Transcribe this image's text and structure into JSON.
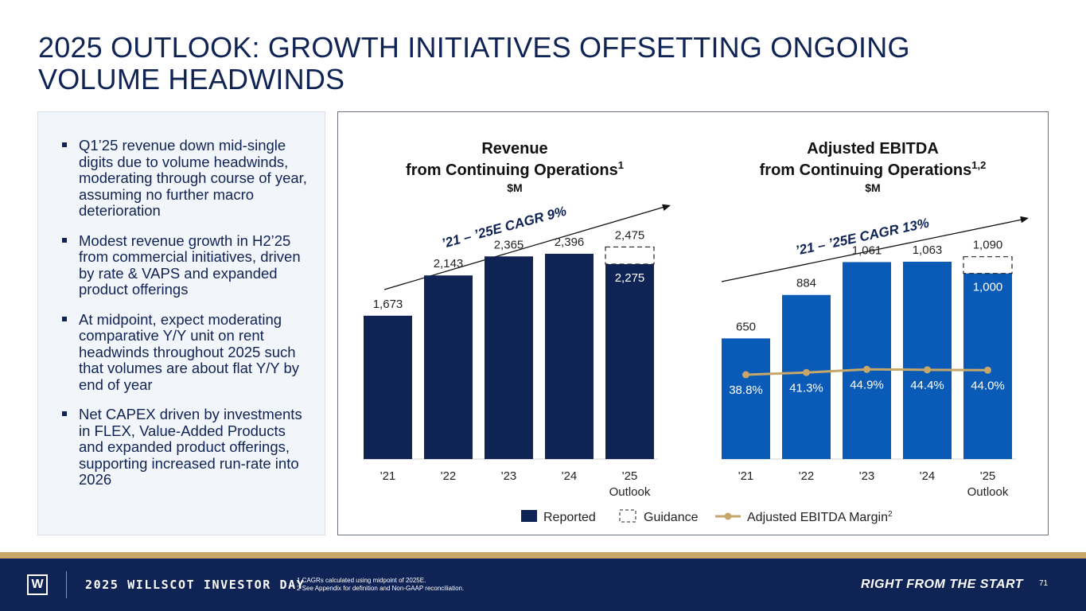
{
  "title": "2025 OUTLOOK: GROWTH INITIATIVES OFFSETTING ONGOING VOLUME HEADWINDS",
  "bullets": [
    "Q1’25 revenue down mid-single digits due to volume headwinds, moderating through course of year, assuming no further macro deterioration",
    "Modest revenue growth in H2’25 from commercial initiatives, driven by rate & VAPS and expanded product offerings",
    "At midpoint, expect moderating comparative Y/Y unit on rent headwinds throughout 2025 such that volumes are about flat Y/Y by end of year",
    "Net CAPEX driven by investments in FLEX, Value-Added Products and expanded product offerings, supporting increased run-rate into 2026"
  ],
  "colors": {
    "navy": "#0f2355",
    "blue": "#0a5bb8",
    "gold": "#c7a669"
  },
  "chart_data": [
    {
      "type": "bar",
      "title": "Revenue",
      "title_line2": "from Continuing Operations",
      "title_sup": "1",
      "unit": "$M",
      "cagr_label": "’21 – ’25E CAGR 9%",
      "categories": [
        "'21",
        "'22",
        "'23",
        "'24",
        "'25"
      ],
      "category_sublabels": [
        "",
        "",
        "",
        "",
        "Outlook"
      ],
      "values": [
        1673,
        2143,
        2365,
        2396,
        2275
      ],
      "value_labels": [
        "1,673",
        "2,143",
        "2,365",
        "2,396",
        "2,275"
      ],
      "guidance_high": 2475,
      "guidance_label": "2,475",
      "ylim": [
        0,
        2600
      ],
      "color": "#0f2355"
    },
    {
      "type": "bar",
      "title": "Adjusted EBITDA",
      "title_line2": "from Continuing Operations",
      "title_sup": "1,2",
      "unit": "$M",
      "cagr_label": "’21 – ’25E CAGR 13%",
      "categories": [
        "'21",
        "'22",
        "'23",
        "'24",
        "'25"
      ],
      "category_sublabels": [
        "",
        "",
        "",
        "",
        "Outlook"
      ],
      "values": [
        650,
        884,
        1061,
        1063,
        1000
      ],
      "value_labels": [
        "650",
        "884",
        "1,061",
        "1,063",
        "1,000"
      ],
      "guidance_high": 1090,
      "guidance_label": "1,090",
      "margin_values": [
        38.8,
        41.3,
        44.9,
        44.4,
        44.0
      ],
      "margin_labels": [
        "38.8%",
        "41.3%",
        "44.9%",
        "44.4%",
        "44.0%"
      ],
      "ylim": [
        0,
        1200
      ],
      "color": "#0a5bb8"
    }
  ],
  "legend": {
    "reported": "Reported",
    "guidance": "Guidance",
    "margin": "Adjusted EBITDA Margin",
    "margin_sup": "2"
  },
  "footer": {
    "event": "2025 WILLSCOT INVESTOR DAY",
    "footnote1": "1 CAGRs calculated using midpoint of 2025E.",
    "footnote2": "2 See Appendix for definition and Non-GAAP reconciliation.",
    "tagline": "RIGHT FROM THE START",
    "page": "71",
    "logo": "W"
  }
}
